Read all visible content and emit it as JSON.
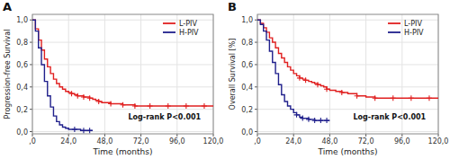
{
  "chart_data": [
    {
      "type": "step",
      "title": "A",
      "xlabel": "Time (months)",
      "ylabel": "Progression-free Survival",
      "xlim": [
        0,
        120
      ],
      "ylim": [
        -0.02,
        1.05
      ],
      "xticks": [
        {
          "value": 0,
          "label": ",0"
        },
        {
          "value": 24.0,
          "label": "24,0"
        },
        {
          "value": 48.0,
          "label": "48,0"
        },
        {
          "value": 72.0,
          "label": "72,0"
        },
        {
          "value": 96.0,
          "label": "96,0"
        },
        {
          "value": 120.0,
          "label": "120,0"
        }
      ],
      "yticks": [
        {
          "value": 0.0,
          "label": "0,0"
        },
        {
          "value": 0.2,
          "label": "0,2"
        },
        {
          "value": 0.4,
          "label": "0,4"
        },
        {
          "value": 0.6,
          "label": "0,6"
        },
        {
          "value": 0.8,
          "label": "0,8"
        },
        {
          "value": 1.0,
          "label": "1,0"
        }
      ],
      "grid": true,
      "legend": "upper right",
      "annotations": [
        "Log-rank P<0.001"
      ],
      "series": [
        {
          "name": "L-PIV",
          "color": "#e02020",
          "x": [
            0,
            2,
            4,
            6,
            8,
            10,
            12,
            14,
            16,
            18,
            20,
            22,
            24,
            26,
            28,
            30,
            32,
            34,
            36,
            38,
            40,
            42,
            44,
            46,
            48,
            52,
            56,
            60,
            64,
            68,
            72,
            78,
            84,
            90,
            96,
            102,
            108,
            114,
            120
          ],
          "values": [
            1.0,
            0.92,
            0.82,
            0.73,
            0.65,
            0.58,
            0.52,
            0.47,
            0.43,
            0.4,
            0.38,
            0.36,
            0.35,
            0.34,
            0.33,
            0.32,
            0.32,
            0.31,
            0.31,
            0.3,
            0.29,
            0.28,
            0.27,
            0.26,
            0.26,
            0.25,
            0.25,
            0.24,
            0.24,
            0.23,
            0.23,
            0.23,
            0.23,
            0.23,
            0.23,
            0.23,
            0.23,
            0.23,
            0.23
          ],
          "censor_x": [
            26,
            30,
            34,
            38,
            44,
            52,
            60,
            68,
            78,
            90,
            102,
            114
          ],
          "censor_y": [
            0.34,
            0.32,
            0.31,
            0.3,
            0.27,
            0.25,
            0.24,
            0.23,
            0.23,
            0.23,
            0.23,
            0.23
          ]
        },
        {
          "name": "H-PIV",
          "color": "#20208c",
          "x": [
            0,
            2,
            4,
            6,
            8,
            10,
            12,
            14,
            16,
            18,
            20,
            22,
            24,
            26,
            28,
            30,
            32,
            34,
            36,
            38,
            40
          ],
          "values": [
            1.0,
            0.9,
            0.75,
            0.6,
            0.45,
            0.32,
            0.22,
            0.14,
            0.09,
            0.06,
            0.04,
            0.03,
            0.02,
            0.02,
            0.02,
            0.02,
            0.01,
            0.01,
            0.01,
            0.01,
            0.01
          ],
          "censor_x": [
            28,
            34,
            38
          ],
          "censor_y": [
            0.02,
            0.01,
            0.01
          ]
        }
      ]
    },
    {
      "type": "step",
      "title": "B",
      "xlabel": "Time (months)",
      "ylabel": "Overall Survival [%]",
      "xlim": [
        0,
        120
      ],
      "ylim": [
        -0.02,
        1.05
      ],
      "xticks": [
        {
          "value": 0,
          "label": ",0"
        },
        {
          "value": 24.0,
          "label": "24,0"
        },
        {
          "value": 48.0,
          "label": "48,0"
        },
        {
          "value": 72.0,
          "label": "72,0"
        },
        {
          "value": 96.0,
          "label": "96,0"
        },
        {
          "value": 120.0,
          "label": "120,0"
        }
      ],
      "yticks": [
        {
          "value": 0.0,
          "label": "0,0"
        },
        {
          "value": 0.2,
          "label": "0,2"
        },
        {
          "value": 0.4,
          "label": "0,4"
        },
        {
          "value": 0.6,
          "label": "0,6"
        },
        {
          "value": 0.8,
          "label": "0,8"
        },
        {
          "value": 1.0,
          "label": "1,0"
        }
      ],
      "grid": true,
      "legend": "upper right",
      "annotations": [
        "Log-rank P<0.001"
      ],
      "series": [
        {
          "name": "L-PIV",
          "color": "#e02020",
          "x": [
            0,
            2,
            4,
            6,
            8,
            10,
            12,
            14,
            16,
            18,
            20,
            22,
            24,
            26,
            28,
            30,
            32,
            34,
            36,
            38,
            40,
            42,
            44,
            46,
            48,
            52,
            56,
            60,
            66,
            72,
            78,
            84,
            90,
            96,
            102,
            108,
            114,
            120
          ],
          "values": [
            1.0,
            0.97,
            0.93,
            0.89,
            0.84,
            0.8,
            0.75,
            0.7,
            0.66,
            0.62,
            0.58,
            0.55,
            0.52,
            0.5,
            0.48,
            0.47,
            0.46,
            0.45,
            0.44,
            0.43,
            0.42,
            0.41,
            0.4,
            0.38,
            0.37,
            0.36,
            0.35,
            0.34,
            0.32,
            0.31,
            0.3,
            0.3,
            0.3,
            0.3,
            0.3,
            0.3,
            0.3,
            0.3
          ],
          "censor_x": [
            28,
            32,
            40,
            46,
            56,
            66,
            78,
            90,
            102,
            114
          ],
          "censor_y": [
            0.48,
            0.46,
            0.42,
            0.38,
            0.35,
            0.32,
            0.3,
            0.3,
            0.3,
            0.3
          ]
        },
        {
          "name": "H-PIV",
          "color": "#20208c",
          "x": [
            0,
            2,
            4,
            6,
            8,
            10,
            12,
            14,
            16,
            18,
            20,
            22,
            24,
            26,
            28,
            30,
            32,
            34,
            36,
            38,
            40,
            42,
            44,
            46,
            48
          ],
          "values": [
            1.0,
            0.96,
            0.9,
            0.82,
            0.72,
            0.62,
            0.52,
            0.42,
            0.33,
            0.27,
            0.23,
            0.2,
            0.17,
            0.15,
            0.13,
            0.12,
            0.12,
            0.11,
            0.11,
            0.1,
            0.1,
            0.1,
            0.1,
            0.1,
            0.1
          ],
          "censor_x": [
            26,
            30,
            34,
            38,
            42,
            46
          ],
          "censor_y": [
            0.15,
            0.12,
            0.11,
            0.1,
            0.1,
            0.1
          ]
        }
      ]
    }
  ]
}
